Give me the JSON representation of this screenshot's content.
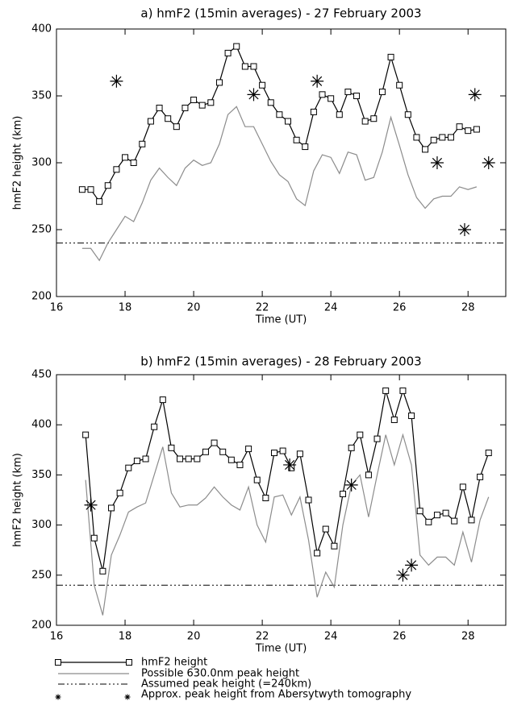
{
  "chart_data": [
    {
      "type": "line",
      "title": "a) hmF2 (15min averages) - 27 February 2003",
      "xlabel": "Time (UT)",
      "ylabel": "hmF2 height (km)",
      "xlim": [
        16,
        29.1
      ],
      "xticks": [
        16,
        18,
        20,
        22,
        24,
        26,
        28
      ],
      "ylim": [
        200,
        400
      ],
      "yticks": [
        200,
        250,
        300,
        350,
        400
      ],
      "hline": 240,
      "series": [
        {
          "style": "line-square",
          "color": "#000000",
          "x": [
            16.75,
            17,
            17.25,
            17.5,
            17.75,
            18,
            18.25,
            18.5,
            18.75,
            19,
            19.25,
            19.5,
            19.75,
            20,
            20.25,
            20.5,
            20.75,
            21,
            21.25,
            21.5,
            21.75,
            22,
            22.25,
            22.5,
            22.75,
            23,
            23.25,
            23.5,
            23.75,
            24,
            24.25,
            24.5,
            24.75,
            25,
            25.25,
            25.5,
            25.75,
            26,
            26.25,
            26.5,
            26.75,
            27,
            27.25,
            27.5,
            27.75,
            28,
            28.25
          ],
          "values": [
            280,
            280,
            271,
            283,
            295,
            304,
            300,
            314,
            331,
            341,
            333,
            327,
            341,
            347,
            343,
            345,
            360,
            382,
            387,
            372,
            372,
            358,
            345,
            336,
            331,
            317,
            312,
            338,
            351,
            348,
            336,
            353,
            350,
            331,
            333,
            353,
            379,
            358,
            336,
            319,
            310,
            317,
            319,
            319,
            327,
            324,
            325
          ]
        },
        {
          "style": "line",
          "color": "#8c8c8c",
          "x": [
            16.75,
            17,
            17.25,
            17.5,
            17.75,
            18,
            18.25,
            18.5,
            18.75,
            19,
            19.25,
            19.5,
            19.75,
            20,
            20.25,
            20.5,
            20.75,
            21,
            21.25,
            21.5,
            21.75,
            22,
            22.25,
            22.5,
            22.75,
            23,
            23.25,
            23.5,
            23.75,
            24,
            24.25,
            24.5,
            24.75,
            25,
            25.25,
            25.5,
            25.75,
            26,
            26.25,
            26.5,
            26.75,
            27,
            27.25,
            27.5,
            27.75,
            28,
            28.25
          ],
          "values": [
            236,
            236,
            227,
            240,
            250,
            260,
            256,
            270,
            287,
            296,
            289,
            283,
            296,
            302,
            298,
            300,
            314,
            336,
            342,
            327,
            327,
            314,
            301,
            291,
            286,
            273,
            268,
            294,
            306,
            304,
            292,
            308,
            306,
            287,
            289,
            308,
            334,
            313,
            291,
            274,
            266,
            273,
            275,
            275,
            282,
            280,
            282
          ]
        },
        {
          "style": "asterisk",
          "color": "#000000",
          "x": [
            17.75,
            21.75,
            23.6,
            27.1,
            27.9,
            28.2,
            28.6
          ],
          "values": [
            361,
            351,
            361,
            300,
            250,
            351,
            300
          ]
        }
      ]
    },
    {
      "type": "line",
      "title": "b) hmF2 (15min averages) - 28 February 2003",
      "xlabel": "Time (UT)",
      "ylabel": "hmF2 height (km)",
      "xlim": [
        16,
        29.1
      ],
      "xticks": [
        16,
        18,
        20,
        22,
        24,
        26,
        28
      ],
      "ylim": [
        200,
        450
      ],
      "yticks": [
        200,
        250,
        300,
        350,
        400,
        450
      ],
      "hline": 240,
      "series": [
        {
          "style": "line-square",
          "color": "#000000",
          "x": [
            16.85,
            17.1,
            17.35,
            17.6,
            17.85,
            18.1,
            18.35,
            18.6,
            18.85,
            19.1,
            19.35,
            19.6,
            19.85,
            20.1,
            20.35,
            20.6,
            20.85,
            21.1,
            21.35,
            21.6,
            21.85,
            22.1,
            22.35,
            22.6,
            22.85,
            23.1,
            23.35,
            23.6,
            23.85,
            24.1,
            24.35,
            24.6,
            24.85,
            25.1,
            25.35,
            25.6,
            25.85,
            26.1,
            26.35,
            26.6,
            26.85,
            27.1,
            27.35,
            27.6,
            27.85,
            28.1,
            28.35,
            28.6
          ],
          "values": [
            390,
            287,
            254,
            317,
            332,
            357,
            364,
            366,
            398,
            425,
            377,
            366,
            366,
            366,
            373,
            382,
            373,
            365,
            360,
            376,
            345,
            327,
            372,
            374,
            357,
            371,
            325,
            272,
            296,
            279,
            331,
            377,
            390,
            350,
            386,
            434,
            405,
            434,
            409,
            314,
            303,
            310,
            312,
            304,
            338,
            305,
            348,
            372
          ]
        },
        {
          "style": "line",
          "color": "#8c8c8c",
          "x": [
            16.85,
            17.1,
            17.35,
            17.6,
            17.85,
            18.1,
            18.35,
            18.6,
            18.85,
            19.1,
            19.35,
            19.6,
            19.85,
            20.1,
            20.35,
            20.6,
            20.85,
            21.1,
            21.35,
            21.6,
            21.85,
            22.1,
            22.35,
            22.6,
            22.85,
            23.1,
            23.35,
            23.6,
            23.85,
            24.1,
            24.35,
            24.6,
            24.85,
            25.1,
            25.35,
            25.6,
            25.85,
            26.1,
            26.35,
            26.6,
            26.85,
            27.1,
            27.35,
            27.6,
            27.85,
            28.1,
            28.35,
            28.6
          ],
          "values": [
            345,
            240,
            210,
            270,
            290,
            313,
            318,
            322,
            350,
            378,
            332,
            318,
            320,
            320,
            327,
            338,
            328,
            320,
            315,
            338,
            300,
            283,
            328,
            330,
            310,
            328,
            285,
            228,
            253,
            238,
            300,
            340,
            350,
            308,
            350,
            390,
            360,
            390,
            360,
            270,
            260,
            268,
            268,
            260,
            293,
            263,
            305,
            328
          ]
        },
        {
          "style": "asterisk",
          "color": "#000000",
          "x": [
            17,
            22.8,
            24.6,
            26.1,
            26.35
          ],
          "values": [
            320,
            360,
            340,
            250,
            260
          ]
        }
      ]
    }
  ],
  "legend": [
    "hmF2 height",
    "Possible 630.0nm peak height",
    "Assumed peak height (=240km)",
    "Approx. peak height from Abersytwyth tomography"
  ]
}
